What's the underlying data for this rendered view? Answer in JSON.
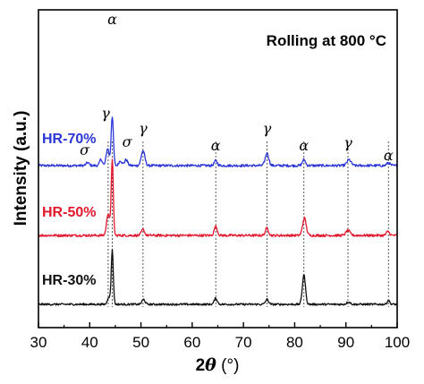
{
  "chart_data": {
    "type": "line",
    "title": "Rolling at 800 °C",
    "xlabel_parts": {
      "prefix": "2",
      "symbol": "θ",
      "unit": " (°)"
    },
    "ylabel": "Intensity (a.u.)",
    "xlim": [
      30,
      100
    ],
    "x_ticks": [
      30,
      40,
      50,
      60,
      70,
      80,
      90,
      100
    ],
    "grid": false,
    "series": [
      {
        "name": "HR-70%",
        "color": "#2b36d9",
        "baseline": 1.95,
        "noise": 0.025,
        "peaks": [
          {
            "x": 39.6,
            "h": 0.06,
            "w": 0.3
          },
          {
            "x": 42.2,
            "h": 0.13,
            "w": 0.25
          },
          {
            "x": 43.5,
            "h": 0.35,
            "w": 0.28
          },
          {
            "x": 44.4,
            "h": 1.0,
            "w": 0.22
          },
          {
            "x": 46.0,
            "h": 0.1,
            "w": 0.3
          },
          {
            "x": 47.1,
            "h": 0.12,
            "w": 0.3
          },
          {
            "x": 50.4,
            "h": 0.3,
            "w": 0.35
          },
          {
            "x": 64.6,
            "h": 0.1,
            "w": 0.3
          },
          {
            "x": 74.6,
            "h": 0.25,
            "w": 0.35
          },
          {
            "x": 81.8,
            "h": 0.12,
            "w": 0.3
          },
          {
            "x": 90.6,
            "h": 0.12,
            "w": 0.4
          },
          {
            "x": 98.3,
            "h": 0.06,
            "w": 0.3
          }
        ]
      },
      {
        "name": "HR-50%",
        "color": "#e3182d",
        "baseline": 1.0,
        "noise": 0.025,
        "peaks": [
          {
            "x": 43.6,
            "h": 0.45,
            "w": 0.3
          },
          {
            "x": 44.4,
            "h": 1.55,
            "w": 0.2
          },
          {
            "x": 50.4,
            "h": 0.12,
            "w": 0.3
          },
          {
            "x": 64.6,
            "h": 0.18,
            "w": 0.3
          },
          {
            "x": 74.6,
            "h": 0.15,
            "w": 0.3
          },
          {
            "x": 81.9,
            "h": 0.35,
            "w": 0.35
          },
          {
            "x": 90.4,
            "h": 0.1,
            "w": 0.4
          },
          {
            "x": 98.2,
            "h": 0.08,
            "w": 0.3
          }
        ]
      },
      {
        "name": "HR-30%",
        "color": "#111111",
        "baseline": 0.0,
        "noise": 0.02,
        "peaks": [
          {
            "x": 43.7,
            "h": 0.15,
            "w": 0.25
          },
          {
            "x": 44.4,
            "h": 1.1,
            "w": 0.2
          },
          {
            "x": 50.5,
            "h": 0.1,
            "w": 0.3
          },
          {
            "x": 64.6,
            "h": 0.12,
            "w": 0.3
          },
          {
            "x": 74.6,
            "h": 0.1,
            "w": 0.3
          },
          {
            "x": 81.8,
            "h": 0.6,
            "w": 0.3
          },
          {
            "x": 90.5,
            "h": 0.05,
            "w": 0.35
          },
          {
            "x": 98.3,
            "h": 0.08,
            "w": 0.25
          }
        ]
      }
    ],
    "phase_labels": [
      {
        "symbol": "α",
        "x": 44.4
      },
      {
        "symbol": "γ",
        "x": 43.1
      },
      {
        "symbol": "σ",
        "x": 39.0
      },
      {
        "symbol": "σ",
        "x": 46.6
      },
      {
        "symbol": "γ",
        "x": 50.4
      },
      {
        "symbol": "α",
        "x": 64.6
      },
      {
        "symbol": "γ",
        "x": 74.6
      },
      {
        "symbol": "α",
        "x": 81.8
      },
      {
        "symbol": "γ",
        "x": 90.4
      },
      {
        "symbol": "α",
        "x": 98.3
      }
    ],
    "reference_lines_x": [
      43.6,
      44.4,
      50.4,
      64.6,
      74.6,
      81.8,
      90.4,
      98.3
    ]
  }
}
